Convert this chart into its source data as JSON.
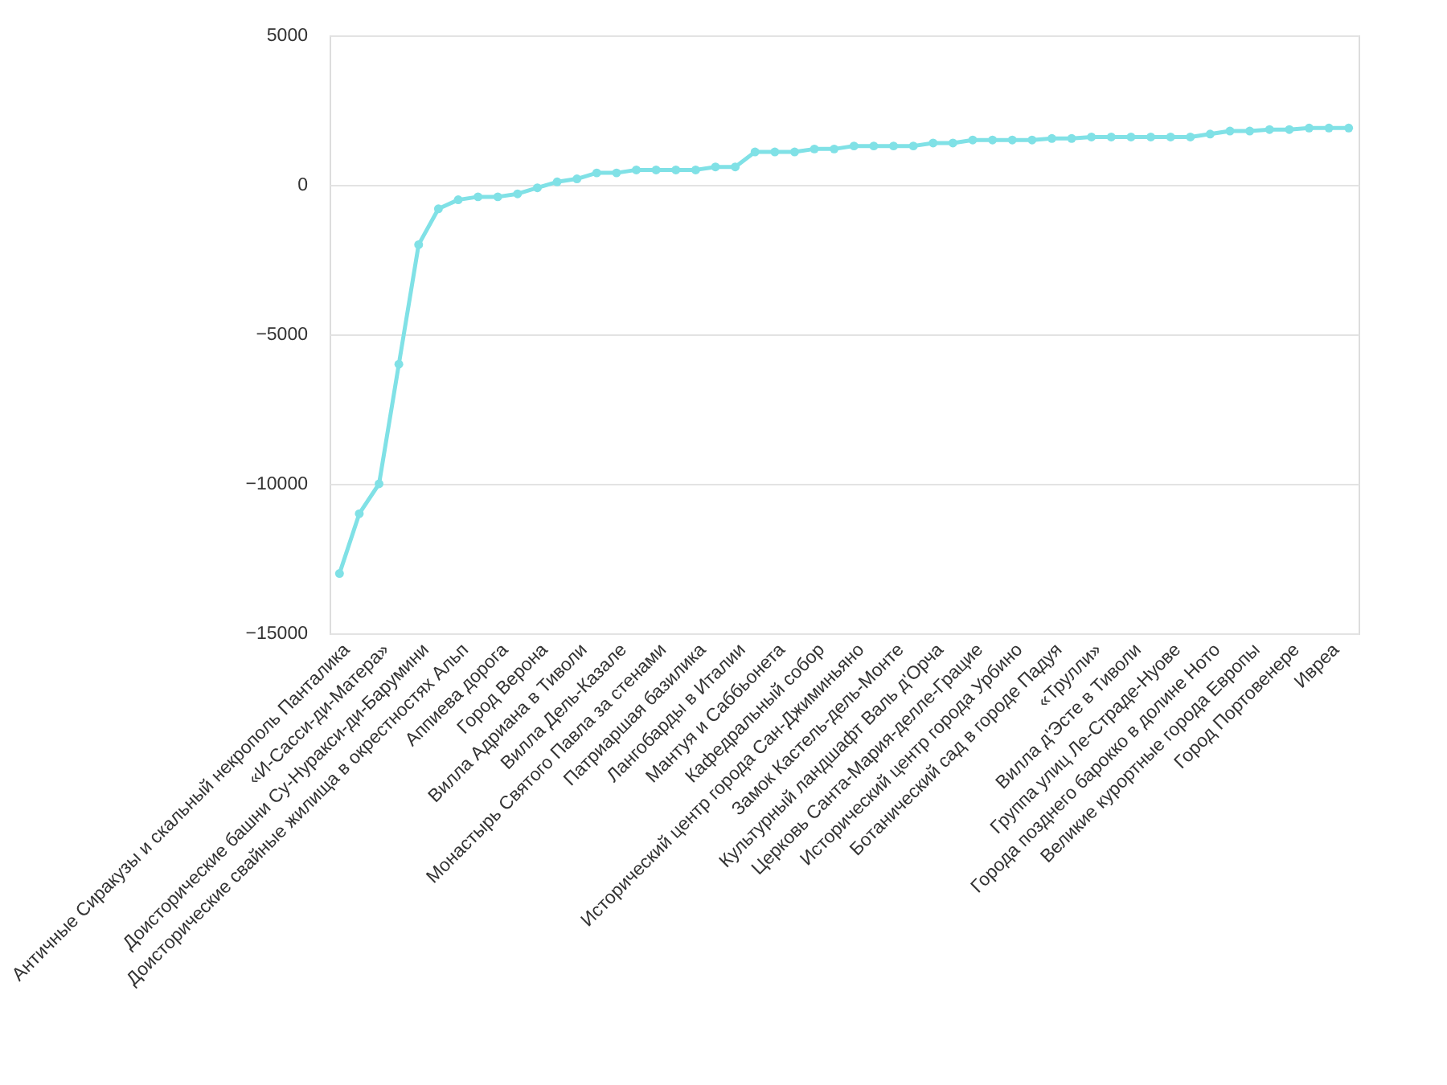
{
  "chart_data": {
    "type": "line",
    "categories": [
      "Античные Сиракузы и скальный некрополь Панталика",
      null,
      "«И-Сасси-ди-Матера»",
      null,
      "Доисторические башни Су-Нуракси-ди-Барумини",
      null,
      "Доисторические свайные жилища в окрестностях Альп",
      null,
      "Аппиева дорога",
      null,
      "Город Верона",
      null,
      "Вилла Адриана в Тиволи",
      null,
      "Вилла Дель-Казале",
      null,
      "Монастырь Святого Павла за стенами",
      null,
      "Патриаршая базилика",
      null,
      "Лангобарды в Италии",
      null,
      "Мантуя и Саббьонета",
      null,
      "Кафедральный собор",
      null,
      "Исторический центр города Сан-Джиминьяно",
      null,
      "Замок Кастель-дель-Монте",
      null,
      "Культурный ландшафт Валь д'Орча",
      null,
      "Церковь Санта-Мария-делле-Грацие",
      null,
      "Исторический центр города Урбино",
      null,
      "Ботанический сад в городе Падуя",
      null,
      "«Трулли»",
      null,
      "Вилла д'Эсте в Тиволи",
      null,
      "Группа улиц Ле-Страде-Нуове",
      null,
      "Города позднего барокко в долине Ното",
      null,
      "Великие курортные города Европы",
      null,
      "Город Портовенере",
      null,
      "Ивреа",
      null
    ],
    "series": [
      {
        "color": "#80e1e6",
        "values": [
          -13000,
          -11000,
          -10000,
          -6000,
          -2000,
          -800,
          -500,
          -400,
          -400,
          -300,
          -100,
          100,
          200,
          400,
          400,
          500,
          500,
          500,
          500,
          600,
          600,
          1100,
          1100,
          1100,
          1200,
          1200,
          1300,
          1300,
          1300,
          1300,
          1400,
          1400,
          1500,
          1500,
          1500,
          1500,
          1550,
          1550,
          1600,
          1600,
          1600,
          1600,
          1600,
          1600,
          1700,
          1800,
          1800,
          1850,
          1850,
          1900,
          1900,
          1900
        ]
      }
    ],
    "ylim": [
      -15000,
      5000
    ],
    "yticks": [
      -15000,
      -10000,
      -5000,
      0,
      5000
    ],
    "grid": "y",
    "marker": "circle",
    "line_style": "solid"
  }
}
